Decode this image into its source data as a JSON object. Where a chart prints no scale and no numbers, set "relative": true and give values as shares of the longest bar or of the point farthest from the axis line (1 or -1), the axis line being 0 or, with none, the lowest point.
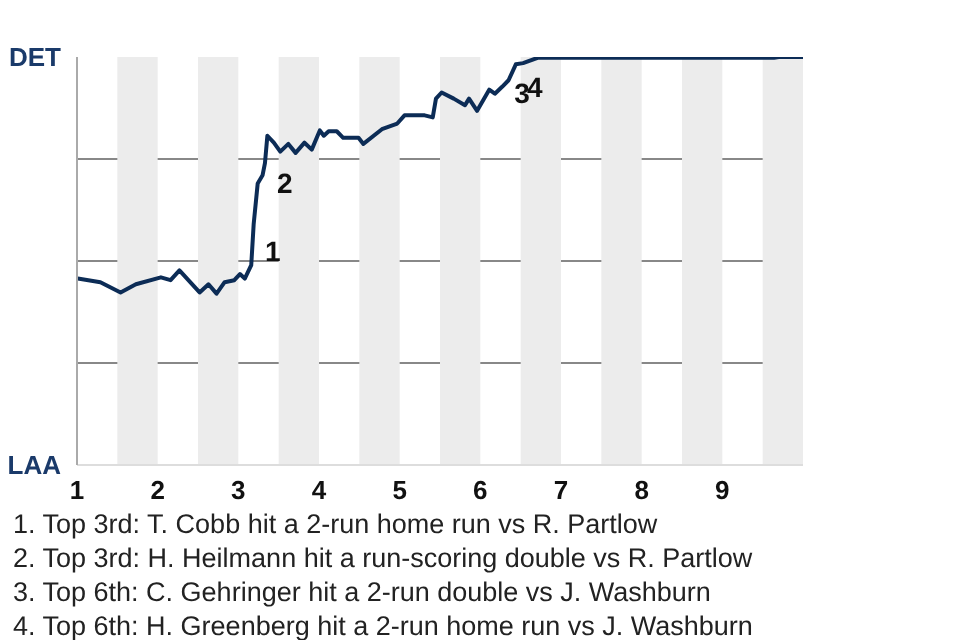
{
  "chart_data": {
    "type": "line",
    "relative": true,
    "x": [
      1.01,
      1.29,
      1.54,
      1.73,
      2.04,
      2.16,
      2.27,
      2.52,
      2.63,
      2.73,
      2.83,
      2.95,
      3.02,
      3.08,
      3.16,
      3.19,
      3.24,
      3.3,
      3.33,
      3.36,
      3.44,
      3.52,
      3.62,
      3.71,
      3.82,
      3.91,
      4.01,
      4.06,
      4.12,
      4.22,
      4.3,
      4.49,
      4.55,
      4.78,
      4.97,
      5.06,
      5.31,
      5.41,
      5.45,
      5.52,
      5.67,
      5.81,
      5.86,
      5.96,
      6.11,
      6.18,
      6.27,
      6.35,
      6.44,
      6.53,
      6.71,
      9.64,
      9.7,
      10
    ],
    "series": [
      {
        "color": "#0c2c56",
        "values": [
          0.457,
          0.448,
          0.423,
          0.443,
          0.46,
          0.453,
          0.477,
          0.423,
          0.443,
          0.42,
          0.448,
          0.453,
          0.468,
          0.457,
          0.49,
          0.59,
          0.69,
          0.71,
          0.74,
          0.807,
          0.79,
          0.768,
          0.787,
          0.765,
          0.79,
          0.773,
          0.82,
          0.807,
          0.818,
          0.818,
          0.802,
          0.802,
          0.787,
          0.823,
          0.837,
          0.857,
          0.857,
          0.852,
          0.898,
          0.913,
          0.898,
          0.882,
          0.898,
          0.868,
          0.92,
          0.91,
          0.927,
          0.943,
          0.982,
          0.985,
          0.998,
          0.998,
          1,
          1
        ]
      }
    ],
    "xlim": [
      1,
      10
    ],
    "xticks": [
      1,
      2,
      3,
      4,
      5,
      6,
      7,
      8,
      9
    ],
    "grid": "y",
    "bands": [
      {
        "axis": "x",
        "from": 1.5,
        "to": 2,
        "color": "#ececec"
      },
      {
        "axis": "x",
        "from": 2.5,
        "to": 3,
        "color": "#ececec"
      },
      {
        "axis": "x",
        "from": 3.5,
        "to": 4,
        "color": "#ececec"
      },
      {
        "axis": "x",
        "from": 4.5,
        "to": 5,
        "color": "#ececec"
      },
      {
        "axis": "x",
        "from": 5.5,
        "to": 6,
        "color": "#ececec"
      },
      {
        "axis": "x",
        "from": 6.5,
        "to": 7,
        "color": "#ececec"
      },
      {
        "axis": "x",
        "from": 7.5,
        "to": 8,
        "color": "#ececec"
      },
      {
        "axis": "x",
        "from": 8.5,
        "to": 9,
        "color": "#ececec"
      },
      {
        "axis": "x",
        "from": 9.5,
        "to": 10,
        "color": "#ececec"
      }
    ],
    "annotations": [
      "DET",
      "LAA",
      {
        "text": "1",
        "x": 3.28,
        "y": 0.555
      },
      {
        "text": "2",
        "x": 3.43,
        "y": 0.72
      },
      {
        "text": "3",
        "x": 6.37,
        "y": 0.94
      },
      {
        "text": "4",
        "x": 6.53,
        "y": 0.955
      },
      "1. Top 3rd: T. Cobb hit a 2-run home run vs R. Partlow",
      "2. Top 3rd: H. Heilmann hit a run-scoring double vs R. Partlow",
      "3. Top 6th: C. Gehringer hit a 2-run double vs J. Washburn",
      "4. Top 6th: H. Greenberg hit a 2-run home run vs J. Washburn"
    ],
    "marker": "none",
    "line_style": "solid"
  }
}
